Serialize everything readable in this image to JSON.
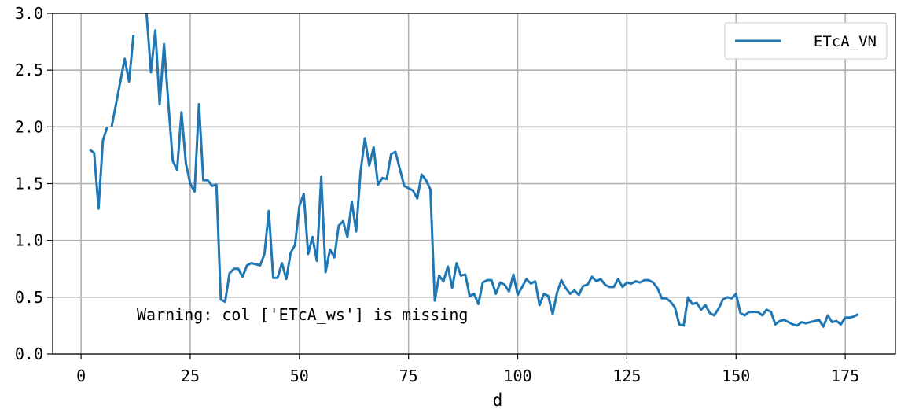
{
  "chart_data": {
    "type": "line",
    "title": "",
    "xlabel": "d",
    "ylabel": "",
    "xlim": [
      -6.5,
      186.5
    ],
    "ylim": [
      0.0,
      3.0
    ],
    "xticks": [
      0,
      25,
      50,
      75,
      100,
      125,
      150,
      175
    ],
    "yticks": [
      "0.0",
      "0.5",
      "1.0",
      "1.5",
      "2.0",
      "2.5",
      "3.0"
    ],
    "grid": true,
    "legend_position": "top-right",
    "annotation": "Warning: col ['ETcA_ws'] is missing",
    "series": [
      {
        "name": "ETcA_VN",
        "color": "#1f77b4",
        "segments": [
          [
            [
              2,
              1.8
            ],
            [
              3,
              1.77
            ],
            [
              4,
              1.28
            ],
            [
              5,
              1.88
            ],
            [
              6,
              2.0
            ]
          ],
          [
            [
              7,
              2.0
            ],
            [
              8,
              2.2
            ],
            [
              9,
              2.4
            ],
            [
              10,
              2.6
            ],
            [
              11,
              2.4
            ],
            [
              12,
              2.81
            ]
          ],
          [
            [
              15,
              3.0
            ],
            [
              16,
              2.48
            ],
            [
              17,
              2.85
            ],
            [
              18,
              2.2
            ],
            [
              19,
              2.73
            ],
            [
              20,
              2.2
            ],
            [
              21,
              1.7
            ],
            [
              22,
              1.62
            ],
            [
              23,
              2.13
            ],
            [
              24,
              1.68
            ],
            [
              25,
              1.5
            ],
            [
              26,
              1.43
            ],
            [
              27,
              2.2
            ],
            [
              28,
              1.53
            ],
            [
              29,
              1.53
            ],
            [
              30,
              1.48
            ],
            [
              31,
              1.49
            ],
            [
              32,
              0.48
            ],
            [
              33,
              0.46
            ],
            [
              34,
              0.71
            ],
            [
              35,
              0.75
            ],
            [
              36,
              0.75
            ],
            [
              37,
              0.68
            ],
            [
              38,
              0.78
            ],
            [
              39,
              0.8
            ],
            [
              40,
              0.79
            ],
            [
              41,
              0.78
            ],
            [
              42,
              0.88
            ],
            [
              43,
              1.26
            ],
            [
              44,
              0.67
            ],
            [
              45,
              0.67
            ],
            [
              46,
              0.8
            ],
            [
              47,
              0.66
            ],
            [
              48,
              0.89
            ],
            [
              49,
              0.96
            ],
            [
              50,
              1.3
            ],
            [
              51,
              1.41
            ],
            [
              52,
              0.88
            ],
            [
              53,
              1.03
            ],
            [
              54,
              0.82
            ],
            [
              55,
              1.56
            ],
            [
              56,
              0.72
            ],
            [
              57,
              0.92
            ],
            [
              58,
              0.85
            ],
            [
              59,
              1.13
            ],
            [
              60,
              1.17
            ],
            [
              61,
              1.03
            ],
            [
              62,
              1.34
            ],
            [
              63,
              1.08
            ],
            [
              64,
              1.6
            ],
            [
              65,
              1.9
            ],
            [
              66,
              1.66
            ],
            [
              67,
              1.82
            ],
            [
              68,
              1.49
            ],
            [
              69,
              1.55
            ],
            [
              70,
              1.54
            ],
            [
              71,
              1.76
            ],
            [
              72,
              1.78
            ],
            [
              73,
              1.63
            ],
            [
              74,
              1.48
            ],
            [
              75,
              1.46
            ],
            [
              76,
              1.44
            ],
            [
              77,
              1.37
            ],
            [
              78,
              1.58
            ],
            [
              79,
              1.53
            ],
            [
              80,
              1.45
            ],
            [
              81,
              0.47
            ],
            [
              82,
              0.69
            ],
            [
              83,
              0.64
            ],
            [
              84,
              0.77
            ],
            [
              85,
              0.58
            ],
            [
              86,
              0.8
            ],
            [
              87,
              0.69
            ],
            [
              88,
              0.7
            ],
            [
              89,
              0.51
            ],
            [
              90,
              0.53
            ],
            [
              91,
              0.44
            ],
            [
              92,
              0.63
            ],
            [
              93,
              0.65
            ],
            [
              94,
              0.65
            ],
            [
              95,
              0.53
            ],
            [
              96,
              0.63
            ],
            [
              97,
              0.61
            ],
            [
              98,
              0.55
            ],
            [
              99,
              0.7
            ],
            [
              100,
              0.52
            ],
            [
              101,
              0.59
            ],
            [
              102,
              0.66
            ],
            [
              103,
              0.62
            ],
            [
              104,
              0.64
            ],
            [
              105,
              0.43
            ],
            [
              106,
              0.53
            ],
            [
              107,
              0.51
            ],
            [
              108,
              0.35
            ],
            [
              109,
              0.54
            ],
            [
              110,
              0.65
            ],
            [
              111,
              0.58
            ],
            [
              112,
              0.53
            ],
            [
              113,
              0.56
            ],
            [
              114,
              0.52
            ],
            [
              115,
              0.6
            ],
            [
              116,
              0.61
            ],
            [
              117,
              0.68
            ],
            [
              118,
              0.64
            ],
            [
              119,
              0.66
            ],
            [
              120,
              0.61
            ],
            [
              121,
              0.59
            ],
            [
              122,
              0.59
            ],
            [
              123,
              0.66
            ],
            [
              124,
              0.59
            ],
            [
              125,
              0.63
            ],
            [
              126,
              0.62
            ],
            [
              127,
              0.64
            ],
            [
              128,
              0.63
            ],
            [
              129,
              0.65
            ],
            [
              130,
              0.65
            ],
            [
              131,
              0.63
            ],
            [
              132,
              0.58
            ],
            [
              133,
              0.49
            ],
            [
              134,
              0.49
            ],
            [
              135,
              0.46
            ],
            [
              136,
              0.41
            ],
            [
              137,
              0.26
            ],
            [
              138,
              0.25
            ],
            [
              139,
              0.5
            ],
            [
              140,
              0.44
            ],
            [
              141,
              0.45
            ],
            [
              142,
              0.39
            ],
            [
              143,
              0.43
            ],
            [
              144,
              0.36
            ],
            [
              145,
              0.34
            ],
            [
              146,
              0.4
            ],
            [
              147,
              0.48
            ],
            [
              148,
              0.5
            ],
            [
              149,
              0.49
            ],
            [
              150,
              0.53
            ],
            [
              151,
              0.36
            ],
            [
              152,
              0.34
            ],
            [
              153,
              0.37
            ],
            [
              154,
              0.37
            ],
            [
              155,
              0.37
            ],
            [
              156,
              0.34
            ],
            [
              157,
              0.39
            ],
            [
              158,
              0.37
            ],
            [
              159,
              0.26
            ],
            [
              160,
              0.29
            ],
            [
              161,
              0.3
            ],
            [
              162,
              0.28
            ],
            [
              163,
              0.26
            ],
            [
              164,
              0.25
            ],
            [
              165,
              0.28
            ],
            [
              166,
              0.27
            ],
            [
              167,
              0.28
            ],
            [
              168,
              0.29
            ],
            [
              169,
              0.3
            ],
            [
              170,
              0.24
            ],
            [
              171,
              0.34
            ],
            [
              172,
              0.28
            ],
            [
              173,
              0.29
            ],
            [
              174,
              0.26
            ],
            [
              175,
              0.32
            ],
            [
              176,
              0.32
            ],
            [
              177,
              0.33
            ],
            [
              178,
              0.35
            ]
          ]
        ]
      }
    ]
  }
}
